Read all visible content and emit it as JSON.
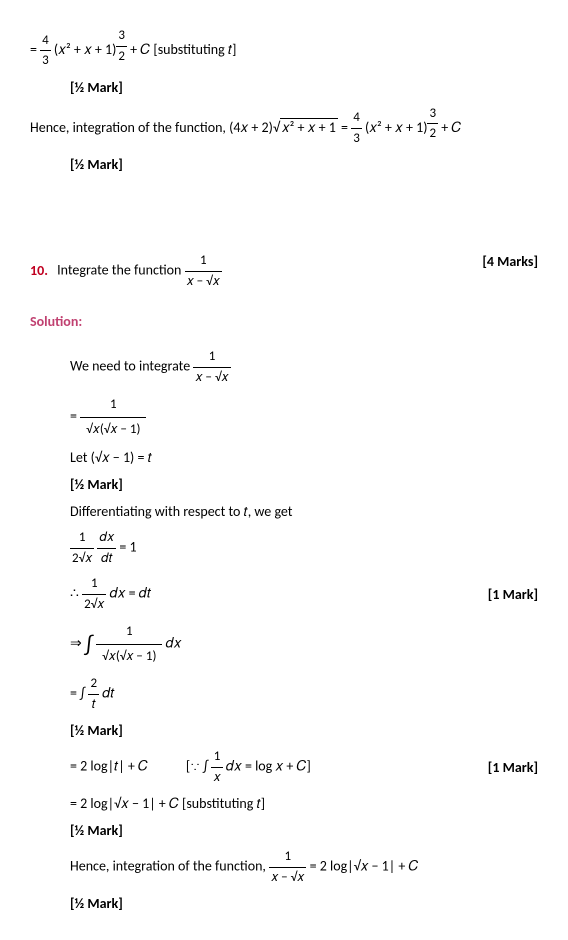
{
  "eq1": {
    "prefix": "= ",
    "frac_num": "4",
    "frac_den": "3",
    "body": "(𝑥² + 𝑥 + 1)",
    "exp_num": "3",
    "exp_den": "2",
    "suffix": " + 𝐶   [substituting 𝑡]"
  },
  "mark_half": "[½ Mark]",
  "hence1_prefix": "Hence, integration of the function, (4𝑥 + 2)",
  "hence1_sqrt": "𝑥² + 𝑥 + 1",
  "hence1_eq": " = ",
  "hence1_frac_num": "4",
  "hence1_frac_den": "3",
  "hence1_body": "(𝑥² + 𝑥 + 1)",
  "hence1_suffix": " + 𝐶",
  "q10_num": "10.",
  "q10_text": "Integrate the function ",
  "q10_frac_num": "1",
  "q10_frac_den": "𝑥 − √𝑥",
  "q10_marks": "[4 Marks]",
  "solution_label": "Solution:",
  "need_text": "We need to integrate ",
  "need_frac_num": "1",
  "need_frac_den": "𝑥 − √𝑥",
  "step1_eq": "= ",
  "step1_num": "1",
  "step1_den": "√𝑥(√𝑥 − 1)",
  "let_text": "Let (√𝑥 − 1) = 𝑡",
  "diff_text": "Differentiating with respect to 𝑡, we get",
  "diff_eq_num": "1",
  "diff_eq_den1": "2√𝑥",
  "diff_eq_dx": "𝑑𝑥",
  "diff_eq_dt": "𝑑𝑡",
  "diff_eq_rhs": " = 1",
  "therefore_prefix": "∴ ",
  "therefore_num": "1",
  "therefore_den": "2√𝑥",
  "therefore_suffix": "𝑑𝑥 = 𝑑𝑡",
  "mark_1": "[1 Mark]",
  "arrow_prefix": "⇒ ",
  "arrow_num": "1",
  "arrow_den": "√𝑥(√𝑥 − 1)",
  "arrow_suffix": "𝑑𝑥",
  "int2_prefix": "= ",
  "int2_num": "2",
  "int2_den": "𝑡",
  "int2_suffix": "𝑑𝑡",
  "log1_prefix": "= 2 log|𝑡| + 𝐶",
  "log1_hint_prefix": "[∵ ∫",
  "log1_hint_num": "1",
  "log1_hint_den": "𝑥",
  "log1_hint_suffix": "𝑑𝑥 = log 𝑥 + 𝐶]",
  "log2": "=  2 log|√𝑥 − 1| + 𝐶    [substituting 𝑡]",
  "hence2_prefix": "Hence, integration of the function, ",
  "hence2_num": "1",
  "hence2_den": "𝑥 − √𝑥",
  "hence2_suffix": " =  2 log|√𝑥 − 1| + 𝐶"
}
